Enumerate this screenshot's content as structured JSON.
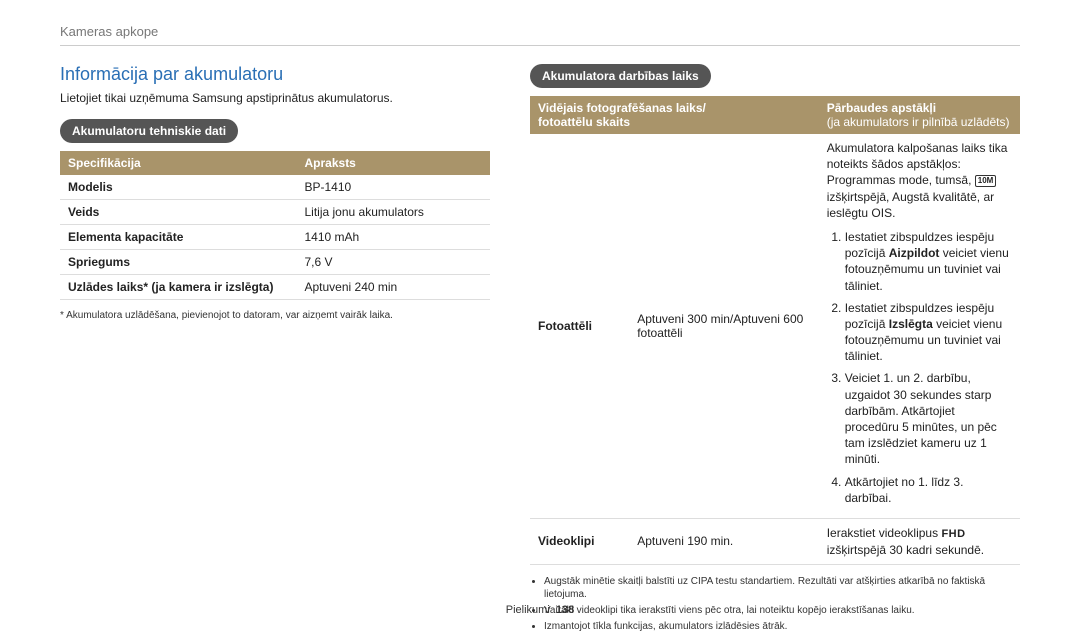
{
  "breadcrumb": "Kameras apkope",
  "main_title": "Informācija par akumulatoru",
  "intro": "Lietojiet tikai uzņēmuma Samsung apstiprinātus akumulatorus.",
  "spec_section_title": "Akumulatoru tehniskie dati",
  "spec_table": {
    "head_col1": "Specifikācija",
    "head_col2": "Apraksts",
    "rows": [
      {
        "k": "Modelis",
        "v": "BP-1410"
      },
      {
        "k": "Veids",
        "v": "Litija jonu akumulators"
      },
      {
        "k": "Elementa kapacitāte",
        "v": "1410 mAh"
      },
      {
        "k": "Spriegums",
        "v": "7,6 V"
      },
      {
        "k": "Uzlādes laiks* (ja kamera ir izslēgta)",
        "v": "Aptuveni 240 min"
      }
    ]
  },
  "spec_footnote": "* Akumulatora uzlādēšana, pievienojot to datoram, var aizņemt vairāk laika.",
  "runtime_section_title": "Akumulatora darbības laiks",
  "runtime_table": {
    "head_col1a": "Vidējais fotografēšanas laiks/",
    "head_col1b": "fotoattēlu skaits",
    "head_col2a": "Pārbaudes apstākļi",
    "head_col2b": "(ja akumulators ir pilnībā uzlādēts)",
    "photos_label": "Fotoattēli",
    "photos_value": "Aptuveni 300 min/Aptuveni 600 fotoattēli",
    "cond_intro_a": "Akumulatora kalpošanas laiks tika noteikts šādos apstākļos: Programmas mode, tumsā, ",
    "cond_intro_b": " izšķirtspējā, Augstā kvalitātē, ar ieslēgtu OIS.",
    "icon_text": "10M",
    "steps": {
      "s1a": "Iestatiet zibspuldzes iespēju pozīcijā ",
      "s1b": "Aizpildot",
      "s1c": " veiciet vienu fotouzņēmumu un tuviniet vai tāliniet.",
      "s2a": "Iestatiet zibspuldzes iespēju pozīcijā ",
      "s2b": "Izslēgta",
      "s2c": " veiciet vienu fotouzņēmumu un tuviniet vai tāliniet.",
      "s3": "Veiciet 1. un 2. darbību, uzgaidot 30 sekundes starp darbībām. Atkārtojiet procedūru 5 minūtes, un pēc tam izslēdziet kameru uz 1 minūti.",
      "s4": "Atkārtojiet no 1. līdz 3. darbībai."
    },
    "video_label": "Videoklipi",
    "video_value": "Aptuveni 190 min.",
    "video_desc_a": "Ierakstiet videoklipus ",
    "video_desc_b": " izšķirtspējā 30 kadri sekundē.",
    "fhd": "FHD"
  },
  "notes": [
    "Augstāk minētie skaitļi balstīti uz CIPA testu standartiem. Rezultāti var atšķirties atkarībā no faktiskā lietojuma.",
    "Vairāki videoklipi tika ierakstīti viens pēc otra, lai noteiktu kopējo ierakstīšanas laiku.",
    "Izmantojot tīkla funkcijas, akumulators izlādēsies ātrāk."
  ],
  "footer_label": "Pielikumi",
  "footer_page": "138",
  "colors": {
    "title": "#2a6fb5",
    "pill_bg": "#555555",
    "table_head": "#a9946a",
    "border": "#dddddd"
  }
}
